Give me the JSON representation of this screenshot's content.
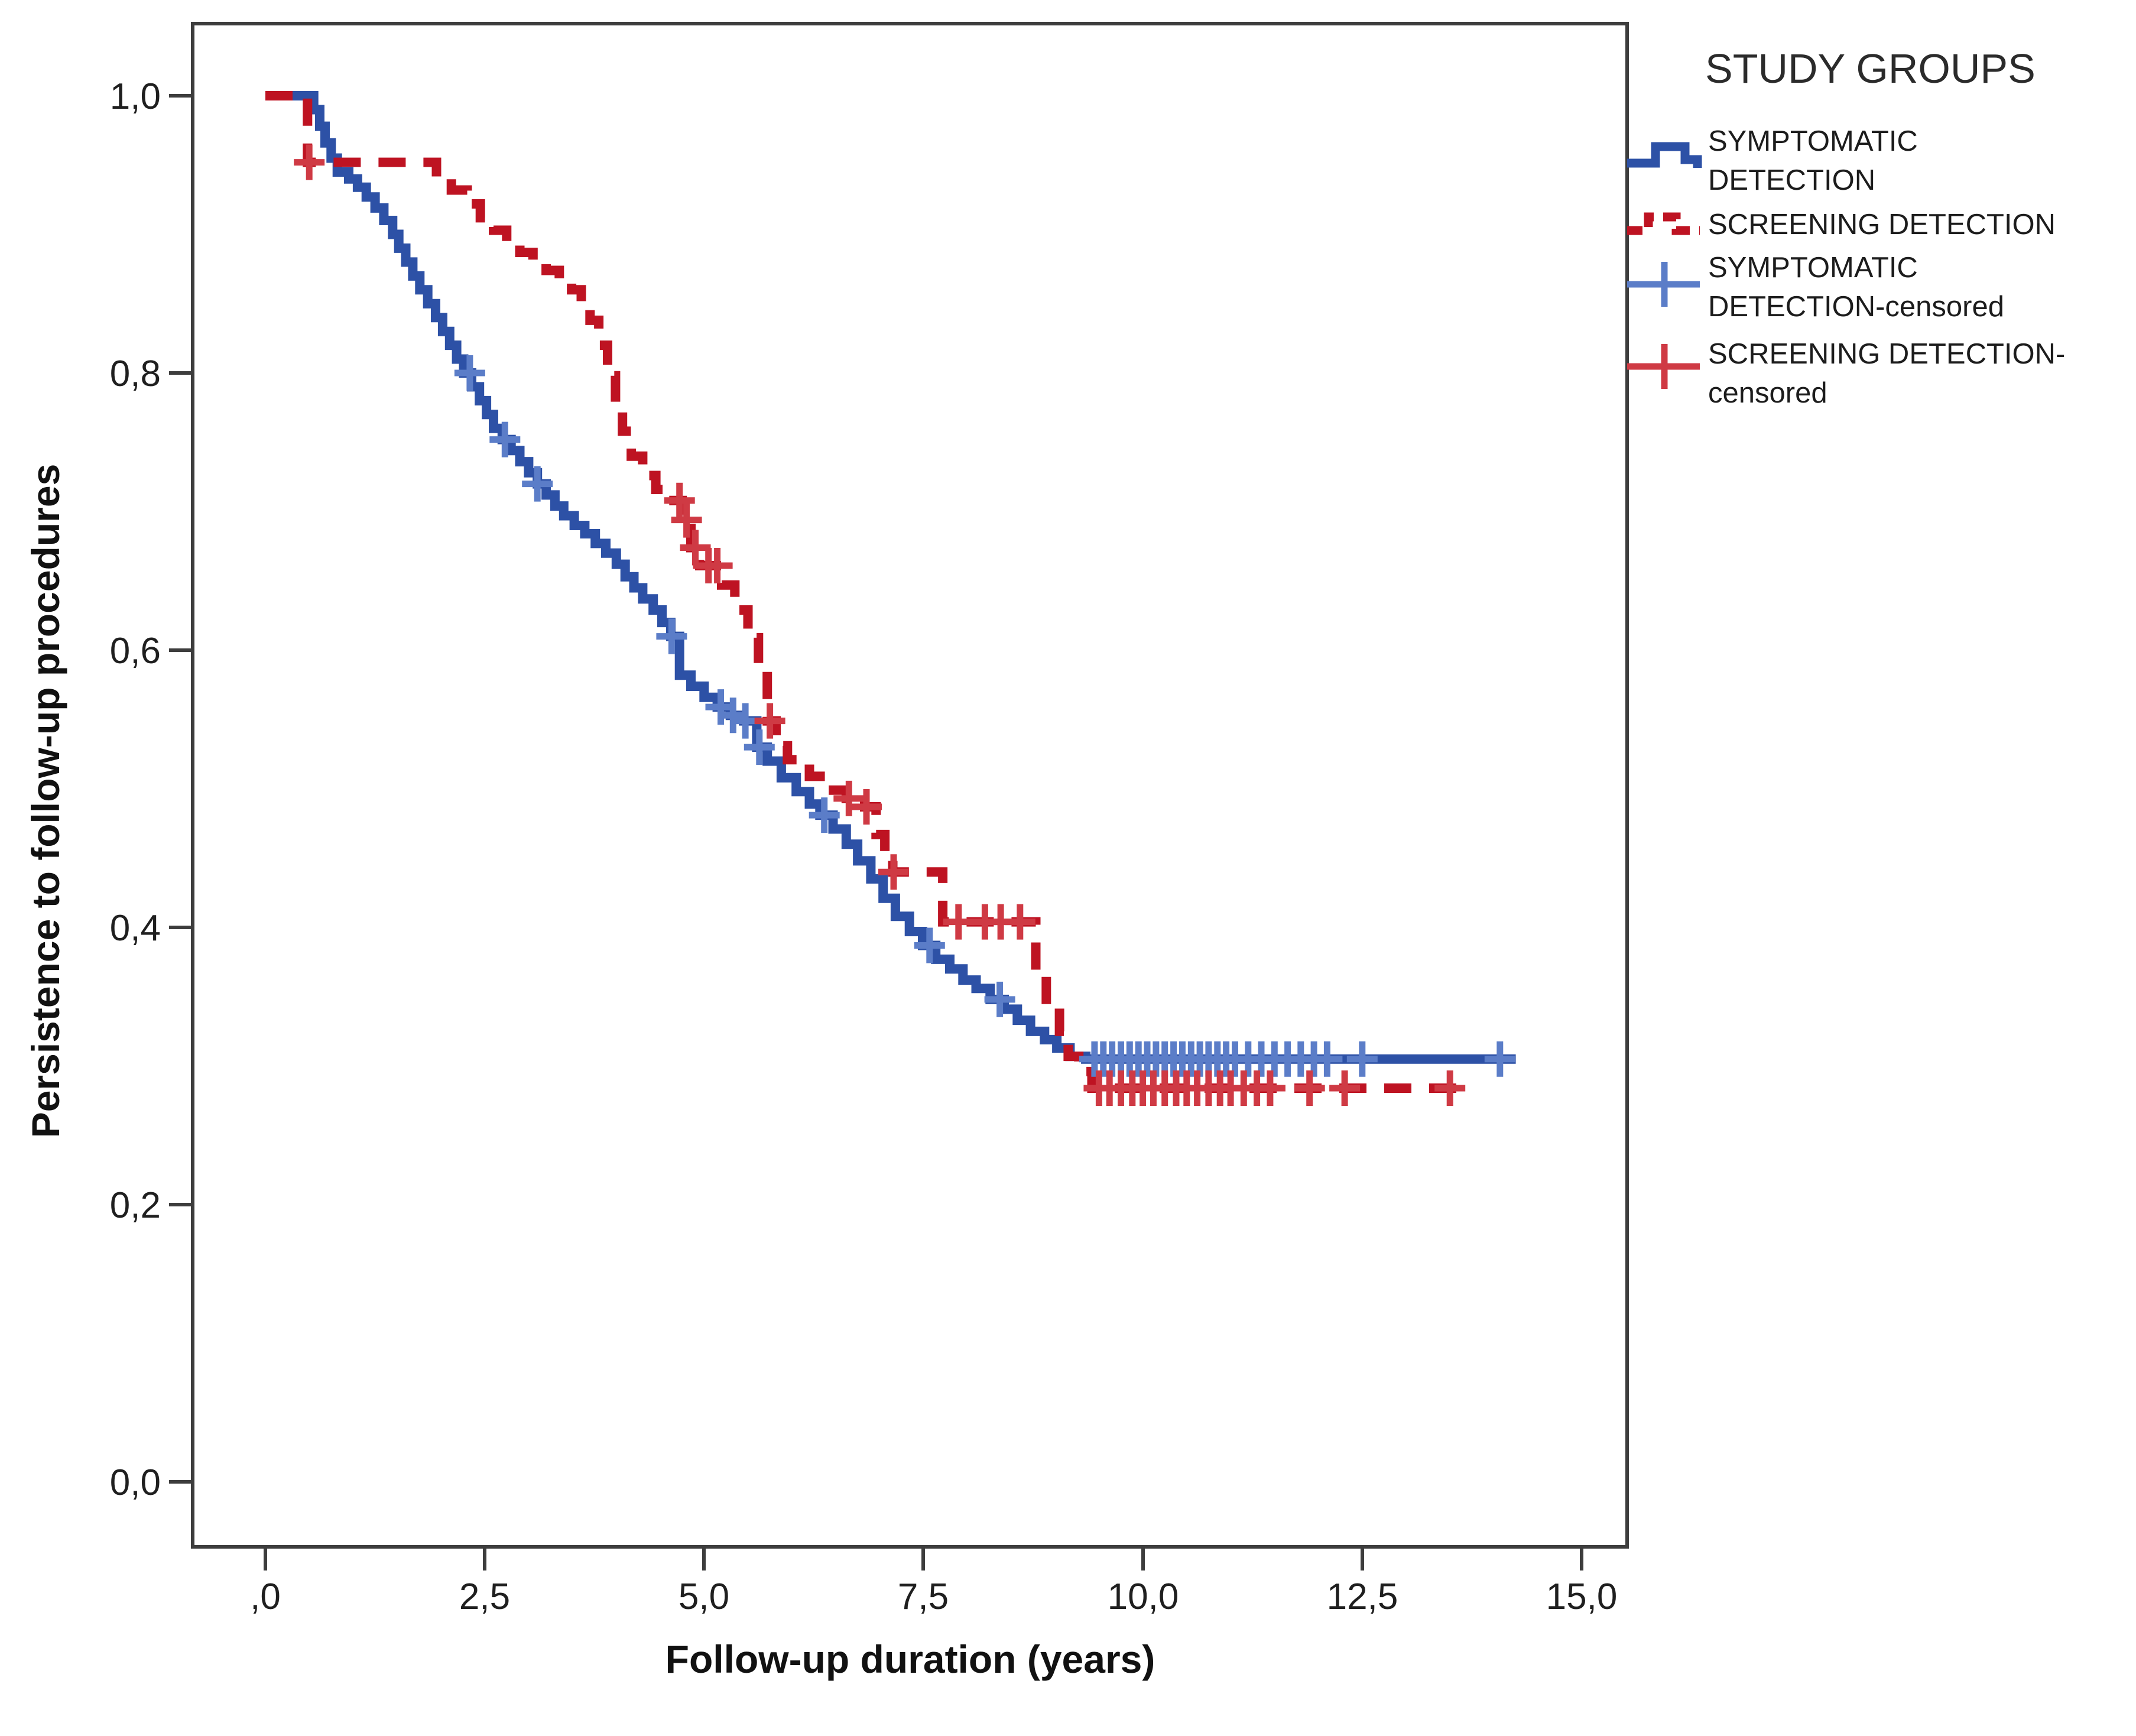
{
  "chart_data": {
    "type": "line",
    "subtype": "kaplan-meier-step-plot",
    "title": "",
    "xlabel": "Follow-up duration (years)",
    "ylabel": "Persistence to follow-up procedures",
    "xlim": [
      -0.8,
      15.5
    ],
    "ylim": [
      -0.05,
      1.05
    ],
    "grid": false,
    "x_ticks": {
      "values": [
        0,
        2.5,
        5.0,
        7.5,
        10.0,
        12.5,
        15.0
      ],
      "labels": [
        ",0",
        "2,5",
        "5,0",
        "7,5",
        "10,0",
        "12,5",
        "15,0"
      ]
    },
    "y_ticks": {
      "values": [
        1.0,
        0.8,
        0.6,
        0.4,
        0.2,
        0.0
      ],
      "labels": [
        "1,0",
        "0,8",
        "0,6",
        "0,4",
        "0,2",
        "0,0"
      ]
    },
    "legend": {
      "title": "STUDY GROUPS",
      "position": "right-outside-top",
      "entries": [
        {
          "lines": [
            "SYMPTOMATIC",
            "DETECTION"
          ],
          "style": "solid-step",
          "color": "#2d51a6"
        },
        {
          "lines": [
            "SCREENING DETECTION"
          ],
          "style": "dashed-step",
          "color": "#be1322"
        },
        {
          "lines": [
            "SYMPTOMATIC",
            "DETECTION-censored"
          ],
          "style": "plus-marker-line",
          "color": "#5b7dc8"
        },
        {
          "lines": [
            "SCREENING DETECTION-",
            "censored"
          ],
          "style": "plus-marker-line",
          "color": "#cf3a44"
        }
      ]
    },
    "series": [
      {
        "name": "SYMPTOMATIC DETECTION",
        "color": "#2d51a6",
        "line": "solid",
        "stroke_width": 16,
        "end_x": 14.25,
        "step_points": [
          [
            0,
            1.0
          ],
          [
            0.55,
            0.99
          ],
          [
            0.62,
            0.978
          ],
          [
            0.68,
            0.966
          ],
          [
            0.75,
            0.955
          ],
          [
            0.82,
            0.945
          ],
          [
            0.95,
            0.94
          ],
          [
            1.05,
            0.934
          ],
          [
            1.15,
            0.927
          ],
          [
            1.25,
            0.919
          ],
          [
            1.35,
            0.91
          ],
          [
            1.45,
            0.9
          ],
          [
            1.52,
            0.89
          ],
          [
            1.6,
            0.88
          ],
          [
            1.68,
            0.87
          ],
          [
            1.76,
            0.86
          ],
          [
            1.85,
            0.85
          ],
          [
            1.94,
            0.84
          ],
          [
            2.02,
            0.83
          ],
          [
            2.1,
            0.82
          ],
          [
            2.18,
            0.81
          ],
          [
            2.26,
            0.8
          ],
          [
            2.35,
            0.79
          ],
          [
            2.44,
            0.78
          ],
          [
            2.52,
            0.77
          ],
          [
            2.6,
            0.76
          ],
          [
            2.7,
            0.752
          ],
          [
            2.8,
            0.744
          ],
          [
            2.9,
            0.736
          ],
          [
            3.0,
            0.728
          ],
          [
            3.1,
            0.72
          ],
          [
            3.2,
            0.712
          ],
          [
            3.3,
            0.704
          ],
          [
            3.4,
            0.697
          ],
          [
            3.52,
            0.69
          ],
          [
            3.64,
            0.684
          ],
          [
            3.76,
            0.677
          ],
          [
            3.88,
            0.67
          ],
          [
            4.0,
            0.662
          ],
          [
            4.1,
            0.653
          ],
          [
            4.2,
            0.645
          ],
          [
            4.3,
            0.637
          ],
          [
            4.42,
            0.629
          ],
          [
            4.52,
            0.62
          ],
          [
            4.62,
            0.61
          ],
          [
            4.72,
            0.582
          ],
          [
            4.85,
            0.574
          ],
          [
            5.0,
            0.566
          ],
          [
            5.15,
            0.559
          ],
          [
            5.3,
            0.553
          ],
          [
            5.45,
            0.549
          ],
          [
            5.6,
            0.53
          ],
          [
            5.72,
            0.52
          ],
          [
            5.88,
            0.508
          ],
          [
            6.05,
            0.498
          ],
          [
            6.2,
            0.489
          ],
          [
            6.32,
            0.481
          ],
          [
            6.47,
            0.471
          ],
          [
            6.62,
            0.46
          ],
          [
            6.75,
            0.448
          ],
          [
            6.9,
            0.435
          ],
          [
            7.04,
            0.421
          ],
          [
            7.18,
            0.408
          ],
          [
            7.34,
            0.397
          ],
          [
            7.49,
            0.387
          ],
          [
            7.64,
            0.377
          ],
          [
            7.8,
            0.37
          ],
          [
            7.95,
            0.362
          ],
          [
            8.1,
            0.356
          ],
          [
            8.26,
            0.348
          ],
          [
            8.42,
            0.341
          ],
          [
            8.57,
            0.333
          ],
          [
            8.72,
            0.325
          ],
          [
            8.88,
            0.319
          ],
          [
            9.02,
            0.313
          ],
          [
            9.17,
            0.307
          ],
          [
            9.35,
            0.305
          ]
        ]
      },
      {
        "name": "SCREENING DETECTION",
        "color": "#be1322",
        "line": "dashed",
        "dash": "46 30",
        "stroke_width": 16,
        "end_x": 13.65,
        "step_points": [
          [
            0,
            1.0
          ],
          [
            0.48,
            0.952
          ],
          [
            1.95,
            0.941
          ],
          [
            2.12,
            0.932
          ],
          [
            2.3,
            0.922
          ],
          [
            2.45,
            0.912
          ],
          [
            2.6,
            0.903
          ],
          [
            2.75,
            0.895
          ],
          [
            2.9,
            0.887
          ],
          [
            3.05,
            0.88
          ],
          [
            3.2,
            0.874
          ],
          [
            3.35,
            0.867
          ],
          [
            3.49,
            0.86
          ],
          [
            3.6,
            0.85
          ],
          [
            3.7,
            0.838
          ],
          [
            3.8,
            0.82
          ],
          [
            3.9,
            0.798
          ],
          [
            3.99,
            0.776
          ],
          [
            4.07,
            0.758
          ],
          [
            4.17,
            0.74
          ],
          [
            4.3,
            0.726
          ],
          [
            4.45,
            0.716
          ],
          [
            4.6,
            0.708
          ],
          [
            4.75,
            0.694
          ],
          [
            4.85,
            0.674
          ],
          [
            4.95,
            0.661
          ],
          [
            5.2,
            0.647
          ],
          [
            5.35,
            0.629
          ],
          [
            5.5,
            0.609
          ],
          [
            5.62,
            0.588
          ],
          [
            5.72,
            0.549
          ],
          [
            5.82,
            0.531
          ],
          [
            5.95,
            0.521
          ],
          [
            6.2,
            0.509
          ],
          [
            6.4,
            0.499
          ],
          [
            6.62,
            0.493
          ],
          [
            6.83,
            0.487
          ],
          [
            6.96,
            0.467
          ],
          [
            7.06,
            0.451
          ],
          [
            7.15,
            0.44
          ],
          [
            7.72,
            0.404
          ],
          [
            8.78,
            0.367
          ],
          [
            8.9,
            0.343
          ],
          [
            9.05,
            0.325
          ],
          [
            9.15,
            0.307
          ],
          [
            9.27,
            0.296
          ],
          [
            9.42,
            0.284
          ]
        ]
      },
      {
        "name": "SYMPTOMATIC DETECTION-censored",
        "color": "#5b7dc8",
        "marker": "plus",
        "stroke_width": 11,
        "points": [
          [
            2.33,
            0.8
          ],
          [
            2.73,
            0.752
          ],
          [
            3.1,
            0.72
          ],
          [
            4.63,
            0.61
          ],
          [
            5.19,
            0.559
          ],
          [
            5.33,
            0.553
          ],
          [
            5.47,
            0.549
          ],
          [
            5.63,
            0.53
          ],
          [
            6.37,
            0.481
          ],
          [
            7.57,
            0.387
          ],
          [
            8.37,
            0.348
          ],
          [
            9.45,
            0.305
          ],
          [
            9.55,
            0.305
          ],
          [
            9.65,
            0.305
          ],
          [
            9.75,
            0.305
          ],
          [
            9.85,
            0.305
          ],
          [
            9.95,
            0.305
          ],
          [
            10.05,
            0.305
          ],
          [
            10.15,
            0.305
          ],
          [
            10.25,
            0.305
          ],
          [
            10.35,
            0.305
          ],
          [
            10.45,
            0.305
          ],
          [
            10.55,
            0.305
          ],
          [
            10.65,
            0.305
          ],
          [
            10.75,
            0.305
          ],
          [
            10.85,
            0.305
          ],
          [
            10.95,
            0.305
          ],
          [
            11.05,
            0.305
          ],
          [
            11.2,
            0.305
          ],
          [
            11.35,
            0.305
          ],
          [
            11.5,
            0.305
          ],
          [
            11.65,
            0.305
          ],
          [
            11.8,
            0.305
          ],
          [
            11.95,
            0.305
          ],
          [
            12.1,
            0.305
          ],
          [
            12.5,
            0.305
          ],
          [
            14.07,
            0.305
          ]
        ]
      },
      {
        "name": "SCREENING DETECTION-censored",
        "color": "#cf3a44",
        "marker": "plus",
        "stroke_width": 11,
        "points": [
          [
            0.5,
            0.952
          ],
          [
            4.72,
            0.708
          ],
          [
            4.8,
            0.694
          ],
          [
            4.9,
            0.674
          ],
          [
            5.05,
            0.661
          ],
          [
            5.15,
            0.661
          ],
          [
            5.75,
            0.549
          ],
          [
            6.65,
            0.493
          ],
          [
            6.85,
            0.487
          ],
          [
            7.16,
            0.44
          ],
          [
            7.9,
            0.404
          ],
          [
            8.2,
            0.404
          ],
          [
            8.38,
            0.404
          ],
          [
            8.6,
            0.404
          ],
          [
            9.5,
            0.284
          ],
          [
            9.62,
            0.284
          ],
          [
            9.75,
            0.284
          ],
          [
            9.88,
            0.284
          ],
          [
            10.0,
            0.284
          ],
          [
            10.12,
            0.284
          ],
          [
            10.25,
            0.284
          ],
          [
            10.38,
            0.284
          ],
          [
            10.5,
            0.284
          ],
          [
            10.62,
            0.284
          ],
          [
            10.75,
            0.284
          ],
          [
            10.88,
            0.284
          ],
          [
            11.0,
            0.284
          ],
          [
            11.15,
            0.284
          ],
          [
            11.3,
            0.284
          ],
          [
            11.45,
            0.284
          ],
          [
            11.9,
            0.284
          ],
          [
            12.3,
            0.284
          ],
          [
            13.5,
            0.284
          ]
        ]
      }
    ]
  }
}
